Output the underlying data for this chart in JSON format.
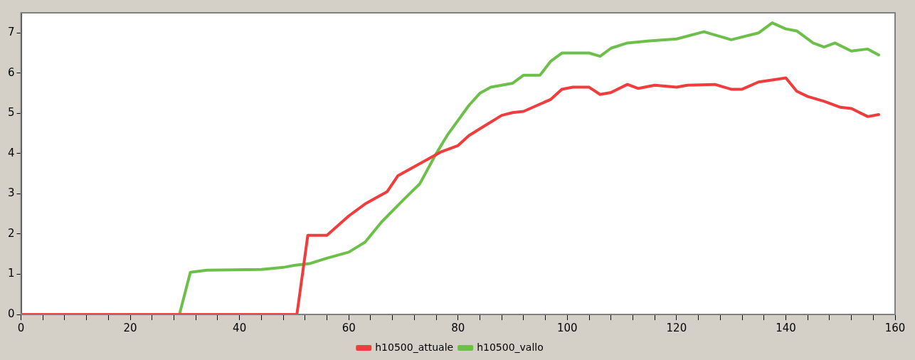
{
  "chart_data": {
    "type": "line",
    "xlim": [
      0,
      160
    ],
    "xticks": [
      0,
      {
        "value": 4,
        "label": null
      },
      {
        "value": 8,
        "label": null
      },
      {
        "value": 12,
        "label": null
      },
      {
        "value": 16,
        "label": null
      },
      20,
      {
        "value": 24,
        "label": null
      },
      {
        "value": 28,
        "label": null
      },
      {
        "value": 32,
        "label": null
      },
      {
        "value": 36,
        "label": null
      },
      40,
      {
        "value": 44,
        "label": null
      },
      {
        "value": 48,
        "label": null
      },
      {
        "value": 52,
        "label": null
      },
      {
        "value": 56,
        "label": null
      },
      60,
      {
        "value": 64,
        "label": null
      },
      {
        "value": 68,
        "label": null
      },
      {
        "value": 72,
        "label": null
      },
      {
        "value": 76,
        "label": null
      },
      80,
      {
        "value": 84,
        "label": null
      },
      {
        "value": 88,
        "label": null
      },
      {
        "value": 92,
        "label": null
      },
      {
        "value": 96,
        "label": null
      },
      100,
      {
        "value": 104,
        "label": null
      },
      {
        "value": 108,
        "label": null
      },
      {
        "value": 112,
        "label": null
      },
      {
        "value": 116,
        "label": null
      },
      120,
      {
        "value": 124,
        "label": null
      },
      {
        "value": 128,
        "label": null
      },
      {
        "value": 132,
        "label": null
      },
      {
        "value": 136,
        "label": null
      },
      140,
      {
        "value": 144,
        "label": null
      },
      {
        "value": 148,
        "label": null
      },
      {
        "value": 152,
        "label": null
      },
      {
        "value": 156,
        "label": null
      },
      160
    ],
    "ylim": [
      0,
      7.5
    ],
    "yticks": [
      0,
      1,
      2,
      3,
      4,
      5,
      6,
      7
    ],
    "grid": false,
    "legend": "bottom",
    "marker": "none",
    "line_style": "solid",
    "series": [
      {
        "name": "h10500_attuale",
        "color": "#f03c3c",
        "x": [
          0,
          50.5,
          52.5,
          56,
          60,
          63,
          67,
          69,
          73,
          77,
          80,
          82,
          85,
          88,
          90,
          92,
          97,
          99,
          101,
          104,
          106,
          108,
          111,
          113,
          116,
          120,
          122,
          127,
          130,
          132,
          135,
          137,
          140,
          142,
          144,
          147,
          150,
          152,
          155,
          157
        ],
        "values": [
          0,
          0,
          1.97,
          1.97,
          2.45,
          2.75,
          3.05,
          3.45,
          3.75,
          4.05,
          4.2,
          4.45,
          4.7,
          4.95,
          5.02,
          5.05,
          5.35,
          5.6,
          5.65,
          5.65,
          5.47,
          5.52,
          5.72,
          5.62,
          5.7,
          5.65,
          5.7,
          5.72,
          5.6,
          5.6,
          5.78,
          5.82,
          5.88,
          5.55,
          5.42,
          5.3,
          5.15,
          5.12,
          4.92,
          4.97
        ]
      },
      {
        "name": "h10500_vallo",
        "color": "#6cc04a",
        "x": [
          0,
          29,
          31,
          34,
          44,
          48,
          50,
          53,
          56,
          60,
          63,
          66,
          70,
          73,
          76,
          78,
          82,
          84,
          86,
          88,
          90,
          92,
          95,
          97,
          99,
          104,
          106,
          108,
          111,
          115,
          120,
          125,
          130,
          135,
          137.5,
          140,
          142,
          145,
          147,
          149,
          152,
          155,
          157
        ],
        "values": [
          0,
          0,
          1.05,
          1.1,
          1.12,
          1.17,
          1.22,
          1.27,
          1.4,
          1.55,
          1.8,
          2.3,
          2.85,
          3.25,
          4.0,
          4.45,
          5.2,
          5.5,
          5.65,
          5.7,
          5.75,
          5.95,
          5.95,
          6.3,
          6.5,
          6.5,
          6.42,
          6.62,
          6.75,
          6.8,
          6.85,
          7.03,
          6.83,
          7.0,
          7.25,
          7.1,
          7.05,
          6.75,
          6.65,
          6.75,
          6.55,
          6.6,
          6.45
        ]
      }
    ]
  }
}
